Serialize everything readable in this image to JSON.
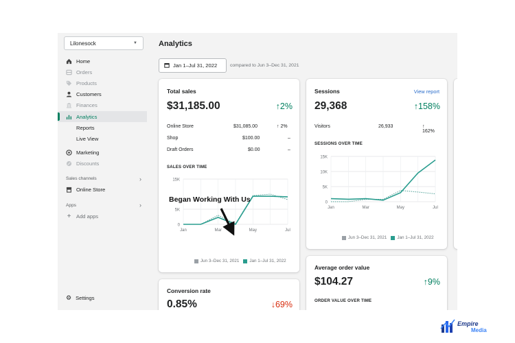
{
  "sidebar": {
    "store_name": "Lilonesock",
    "items": [
      {
        "label": "Home",
        "icon": "home-icon",
        "state": "normal"
      },
      {
        "label": "Orders",
        "icon": "orders-icon",
        "state": "muted"
      },
      {
        "label": "Products",
        "icon": "tag-icon",
        "state": "muted"
      },
      {
        "label": "Customers",
        "icon": "person-icon",
        "state": "normal"
      },
      {
        "label": "Finances",
        "icon": "bank-icon",
        "state": "muted"
      },
      {
        "label": "Analytics",
        "icon": "bar-chart-icon",
        "state": "active"
      },
      {
        "label": "Reports",
        "icon": "",
        "state": "sub"
      },
      {
        "label": "Live View",
        "icon": "",
        "state": "sub"
      },
      {
        "label": "Marketing",
        "icon": "target-icon",
        "state": "normal"
      },
      {
        "label": "Discounts",
        "icon": "discount-icon",
        "state": "muted"
      }
    ],
    "sales_channels_label": "Sales channels",
    "online_store_label": "Online Store",
    "apps_label": "Apps",
    "add_apps_label": "Add apps",
    "settings_label": "Settings"
  },
  "header": {
    "title": "Analytics",
    "date_range": "Jan 1–Jul 31, 2022",
    "compared_to": "compared to Jun 3–Dec 31, 2021"
  },
  "total_sales": {
    "title": "Total sales",
    "value": "$31,185.00",
    "delta": "↑2%",
    "rows": [
      {
        "label": "Online Store",
        "value": "$31,085.00",
        "delta": "↑ 2%"
      },
      {
        "label": "Shop",
        "value": "$100.00",
        "delta": "–"
      },
      {
        "label": "Draft Orders",
        "value": "$0.00",
        "delta": "–"
      }
    ],
    "chart_title": "SALES OVER TIME",
    "legend_prev": "Jun 3–Dec 31, 2021",
    "legend_curr": "Jan 1–Jul 31, 2022"
  },
  "sessions": {
    "title": "Sessions",
    "view_report": "View report",
    "value": "29,368",
    "delta": "↑158%",
    "visitors_label": "Visitors",
    "visitors_value": "26,933",
    "visitors_delta": "↑ 162%",
    "chart_title": "SESSIONS OVER TIME",
    "legend_prev": "Jun 3–Dec 31, 2021",
    "legend_curr": "Jan 1–Jul 31, 2022"
  },
  "aov": {
    "title": "Average order value",
    "value": "$104.27",
    "delta": "↑9%",
    "chart_title": "ORDER VALUE OVER TIME"
  },
  "conversion": {
    "title": "Conversion rate",
    "value": "0.85%",
    "delta": "↓69%"
  },
  "annotation": "Began Working With Us",
  "watermark": {
    "word1": "Empire",
    "word2": "Media"
  },
  "colors": {
    "current": "#2a9d8f",
    "previous": "#9aa0a6",
    "up": "#007f5f",
    "down": "#d72c0d",
    "active": "#008060"
  },
  "chart_data": [
    {
      "type": "line",
      "chart": "sales",
      "x": [
        "Jan",
        "Mar",
        "May",
        "Jul"
      ],
      "yticks": [
        "0",
        "5K",
        "15K"
      ],
      "ytick_values": [
        0,
        5000,
        15000
      ],
      "ylim": [
        0,
        15000
      ],
      "xlim": [
        0,
        6
      ],
      "series": [
        {
          "name": "Jun 3–Dec 31, 2021",
          "style": "dotted",
          "points": [
            [
              0,
              0
            ],
            [
              0.5,
              0
            ],
            [
              1,
              0
            ],
            [
              2,
              3000
            ],
            [
              3,
              200
            ],
            [
              4,
              9500
            ],
            [
              5,
              10000
            ],
            [
              6,
              8200
            ]
          ]
        },
        {
          "name": "Jan 1–Jul 31, 2022",
          "style": "solid",
          "points": [
            [
              0,
              0
            ],
            [
              0.5,
              0
            ],
            [
              1,
              0
            ],
            [
              2,
              2300
            ],
            [
              3,
              0
            ],
            [
              4,
              9300
            ],
            [
              5,
              9300
            ],
            [
              6,
              9100
            ]
          ]
        }
      ]
    },
    {
      "type": "line",
      "chart": "sessions",
      "x": [
        "Jan",
        "Mar",
        "May",
        "Jul"
      ],
      "yticks": [
        "0",
        "5K",
        "10K",
        "15K"
      ],
      "ytick_values": [
        0,
        5000,
        10000,
        15000
      ],
      "ylim": [
        0,
        15000
      ],
      "xlim": [
        0,
        6
      ],
      "series": [
        {
          "name": "Jun 3–Dec 31, 2021",
          "style": "dotted",
          "points": [
            [
              0,
              0
            ],
            [
              1,
              0
            ],
            [
              2,
              800
            ],
            [
              3,
              800
            ],
            [
              4,
              3700
            ],
            [
              5,
              3200
            ],
            [
              6,
              2600
            ]
          ]
        },
        {
          "name": "Jan 1–Jul 31, 2022",
          "style": "solid",
          "points": [
            [
              0,
              1000
            ],
            [
              1,
              800
            ],
            [
              2,
              1000
            ],
            [
              3,
              500
            ],
            [
              4,
              3000
            ],
            [
              5,
              9500
            ],
            [
              6,
              13800
            ]
          ]
        }
      ]
    }
  ]
}
